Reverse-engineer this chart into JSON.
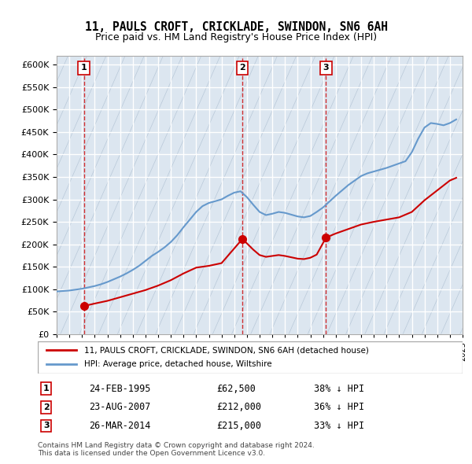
{
  "title": "11, PAULS CROFT, CRICKLADE, SWINDON, SN6 6AH",
  "subtitle": "Price paid vs. HM Land Registry's House Price Index (HPI)",
  "ylabel": "",
  "background_color": "#ffffff",
  "plot_bg_color": "#dce6f0",
  "hatch_color": "#b8c8d8",
  "grid_color": "#ffffff",
  "sale_dates": [
    "1995-02-24",
    "2007-08-23",
    "2014-03-26"
  ],
  "sale_prices": [
    62500,
    212000,
    215000
  ],
  "sale_labels": [
    "1",
    "2",
    "3"
  ],
  "sale_info": [
    {
      "label": "1",
      "date": "24-FEB-1995",
      "price": "£62,500",
      "hpi": "38% ↓ HPI"
    },
    {
      "label": "2",
      "date": "23-AUG-2007",
      "price": "£212,000",
      "hpi": "36% ↓ HPI"
    },
    {
      "label": "3",
      "date": "26-MAR-2014",
      "price": "£215,000",
      "hpi": "33% ↓ HPI"
    }
  ],
  "legend_line1": "11, PAULS CROFT, CRICKLADE, SWINDON, SN6 6AH (detached house)",
  "legend_line2": "HPI: Average price, detached house, Wiltshire",
  "footer1": "Contains HM Land Registry data © Crown copyright and database right 2024.",
  "footer2": "This data is licensed under the Open Government Licence v3.0.",
  "sale_line_color": "#cc0000",
  "price_line_color": "#cc0000",
  "hpi_line_color": "#6699cc",
  "dot_color": "#cc0000",
  "ylim": [
    0,
    620000
  ],
  "yticks": [
    0,
    50000,
    100000,
    150000,
    200000,
    250000,
    300000,
    350000,
    400000,
    450000,
    500000,
    550000,
    600000
  ],
  "ytick_labels": [
    "£0",
    "£50K",
    "£100K",
    "£150K",
    "£200K",
    "£250K",
    "£300K",
    "£350K",
    "£400K",
    "£450K",
    "£500K",
    "£550K",
    "£600K"
  ],
  "hpi_years": [
    1993,
    1993.5,
    1994,
    1994.5,
    1995,
    1995.5,
    1996,
    1996.5,
    1997,
    1997.5,
    1998,
    1998.5,
    1999,
    1999.5,
    2000,
    2000.5,
    2001,
    2001.5,
    2002,
    2002.5,
    2003,
    2003.5,
    2004,
    2004.5,
    2005,
    2005.5,
    2006,
    2006.5,
    2007,
    2007.5,
    2008,
    2008.5,
    2009,
    2009.5,
    2010,
    2010.5,
    2011,
    2011.5,
    2012,
    2012.5,
    2013,
    2013.5,
    2014,
    2014.5,
    2015,
    2015.5,
    2016,
    2016.5,
    2017,
    2017.5,
    2018,
    2018.5,
    2019,
    2019.5,
    2020,
    2020.5,
    2021,
    2021.5,
    2022,
    2022.5,
    2023,
    2023.5,
    2024,
    2024.5
  ],
  "hpi_values": [
    95000,
    96000,
    97000,
    99000,
    101000,
    104000,
    107000,
    111000,
    116000,
    122000,
    128000,
    135000,
    143000,
    152000,
    163000,
    174000,
    183000,
    193000,
    205000,
    220000,
    238000,
    255000,
    272000,
    285000,
    292000,
    296000,
    300000,
    308000,
    315000,
    318000,
    305000,
    288000,
    272000,
    265000,
    268000,
    272000,
    270000,
    266000,
    262000,
    260000,
    263000,
    272000,
    282000,
    295000,
    308000,
    320000,
    332000,
    342000,
    352000,
    358000,
    362000,
    366000,
    370000,
    375000,
    380000,
    385000,
    405000,
    435000,
    460000,
    470000,
    468000,
    465000,
    470000,
    478000
  ],
  "price_years": [
    1995.15,
    1996,
    1997,
    1998,
    1999,
    2000,
    2001,
    2002,
    2003,
    2004,
    2005,
    2006,
    2007.65,
    2008,
    2008.5,
    2009,
    2009.5,
    2010,
    2010.5,
    2011,
    2011.5,
    2012,
    2012.5,
    2013,
    2013.5,
    2014.24,
    2015,
    2016,
    2017,
    2018,
    2019,
    2020,
    2021,
    2022,
    2023,
    2024,
    2024.5
  ],
  "price_values": [
    62500,
    68000,
    74000,
    82000,
    90000,
    98000,
    108000,
    120000,
    135000,
    148000,
    152000,
    158000,
    212000,
    202000,
    188000,
    176000,
    172000,
    174000,
    176000,
    174000,
    171000,
    168000,
    167000,
    170000,
    177000,
    215000,
    224000,
    234000,
    244000,
    250000,
    255000,
    260000,
    272000,
    298000,
    320000,
    342000,
    348000
  ],
  "xmin": 1993,
  "xmax": 2025
}
